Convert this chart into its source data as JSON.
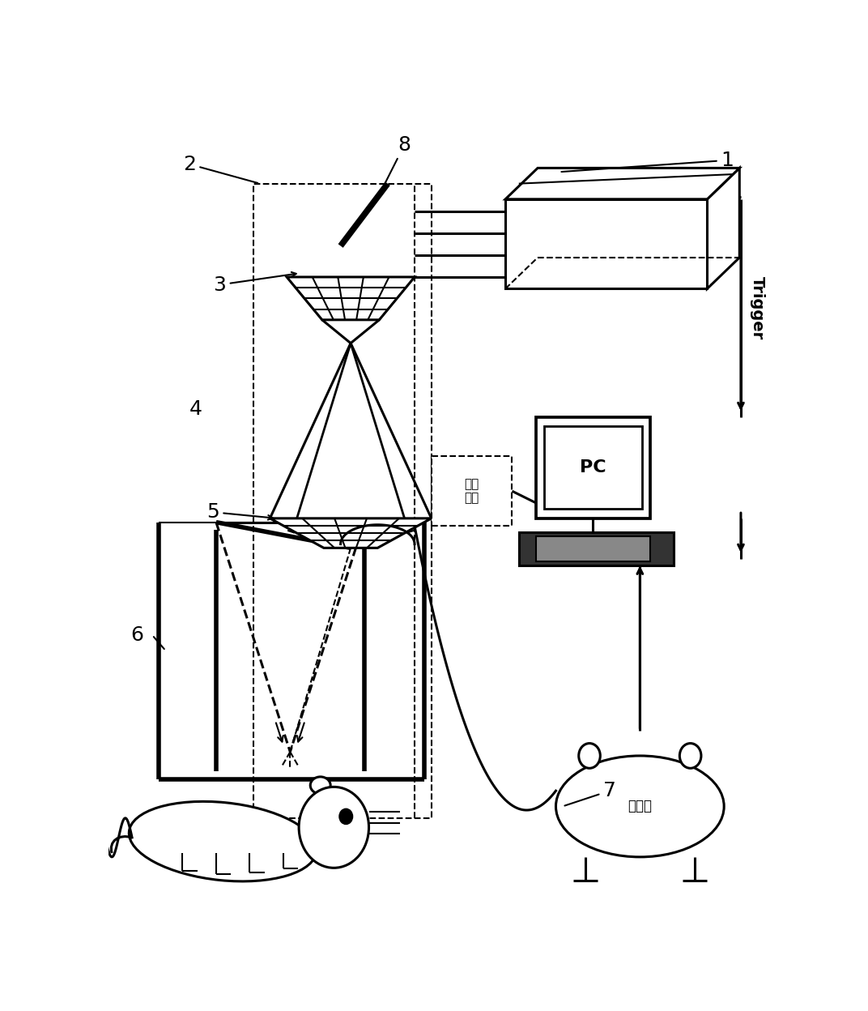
{
  "bg_color": "#ffffff",
  "fig_width": 10.72,
  "fig_height": 12.48,
  "dpi": 100,
  "stepper_label": "步进\n电机",
  "amplifier_label": "放大器",
  "trigger_label": "Trigger",
  "pc_label": "PC",
  "lw_thin": 1.5,
  "lw_med": 2.2,
  "lw_thick": 4.0,
  "label_fontsize": 18
}
